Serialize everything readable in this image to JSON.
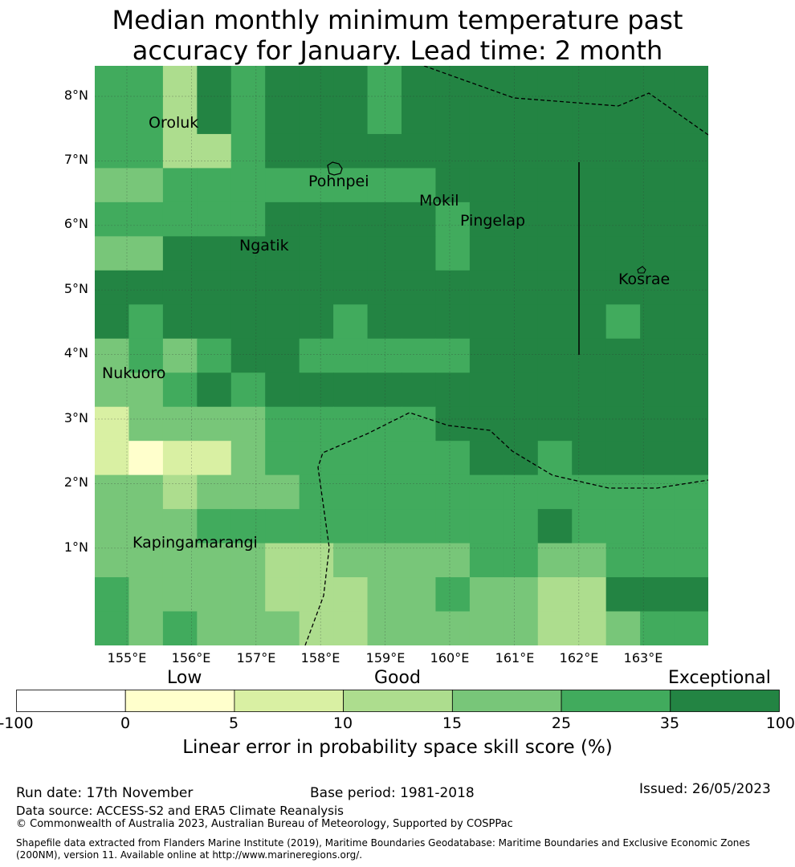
{
  "title_line1": "Median monthly minimum temperature past",
  "title_line2": "accuracy for January. Lead time: 2 month",
  "lat_labels": [
    "8°N",
    "7°N",
    "6°N",
    "5°N",
    "4°N",
    "3°N",
    "2°N",
    "1°N"
  ],
  "lon_labels": [
    "155°E",
    "156°E",
    "157°E",
    "158°E",
    "159°E",
    "160°E",
    "161°E",
    "162°E",
    "163°E"
  ],
  "places": [
    "Oroluk",
    "Pohnpei",
    "Mokil",
    "Pingelap",
    "Ngatik",
    "Kosrae",
    "Nukuoro",
    "Kapingamarangi"
  ],
  "colorbar": {
    "categories": [
      "Low",
      "Good",
      "Exceptional"
    ],
    "ticks": [
      "-100",
      "0",
      "5",
      "10",
      "15",
      "25",
      "35",
      "100"
    ],
    "colors": [
      "#ffffff",
      "#ffffcc",
      "#d9f0a3",
      "#addd8e",
      "#78c679",
      "#41ab5d",
      "#238443"
    ],
    "label": "Linear error in probability space skill score (%)"
  },
  "grid_values": [
    [
      5,
      5,
      3,
      6,
      5,
      6,
      6,
      6,
      5,
      6,
      6,
      6,
      6,
      6,
      6,
      6,
      6,
      6
    ],
    [
      5,
      5,
      3,
      6,
      5,
      6,
      6,
      6,
      5,
      6,
      6,
      6,
      6,
      6,
      6,
      6,
      6,
      6
    ],
    [
      5,
      5,
      3,
      3,
      5,
      6,
      6,
      6,
      6,
      6,
      6,
      6,
      6,
      6,
      6,
      6,
      6,
      6
    ],
    [
      4,
      4,
      5,
      5,
      5,
      5,
      5,
      5,
      5,
      5,
      6,
      6,
      6,
      6,
      6,
      6,
      6,
      6
    ],
    [
      5,
      5,
      5,
      5,
      5,
      6,
      6,
      6,
      6,
      6,
      5,
      6,
      6,
      6,
      6,
      6,
      6,
      6
    ],
    [
      4,
      4,
      6,
      6,
      6,
      6,
      6,
      6,
      6,
      6,
      5,
      6,
      6,
      6,
      6,
      6,
      6,
      6
    ],
    [
      6,
      6,
      6,
      6,
      6,
      6,
      6,
      6,
      6,
      6,
      6,
      6,
      6,
      6,
      6,
      6,
      6,
      6
    ],
    [
      6,
      5,
      6,
      6,
      6,
      6,
      6,
      5,
      6,
      6,
      6,
      6,
      6,
      6,
      6,
      5,
      6,
      6
    ],
    [
      4,
      5,
      4,
      5,
      6,
      6,
      5,
      5,
      5,
      5,
      5,
      6,
      6,
      6,
      6,
      6,
      6,
      6
    ],
    [
      4,
      4,
      5,
      6,
      5,
      6,
      6,
      6,
      6,
      6,
      6,
      6,
      6,
      6,
      6,
      6,
      6,
      6
    ],
    [
      2,
      4,
      4,
      4,
      4,
      5,
      5,
      5,
      5,
      5,
      6,
      6,
      6,
      6,
      6,
      6,
      6,
      6
    ],
    [
      2,
      1,
      2,
      2,
      4,
      5,
      5,
      5,
      5,
      5,
      5,
      6,
      6,
      5,
      6,
      6,
      6,
      6
    ],
    [
      4,
      4,
      3,
      4,
      4,
      4,
      5,
      5,
      5,
      5,
      5,
      5,
      5,
      5,
      5,
      5,
      5,
      5
    ],
    [
      4,
      4,
      4,
      5,
      5,
      5,
      5,
      5,
      5,
      5,
      5,
      5,
      5,
      6,
      5,
      5,
      5,
      5
    ],
    [
      4,
      4,
      4,
      4,
      4,
      3,
      3,
      4,
      4,
      4,
      4,
      5,
      5,
      4,
      4,
      5,
      5,
      5
    ],
    [
      5,
      4,
      4,
      4,
      4,
      3,
      3,
      3,
      4,
      4,
      5,
      4,
      4,
      3,
      3,
      6,
      6,
      6
    ],
    [
      5,
      4,
      5,
      4,
      4,
      4,
      3,
      3,
      4,
      4,
      4,
      4,
      4,
      3,
      3,
      4,
      5,
      5
    ]
  ],
  "footer": {
    "run_date": "Run date: 17th November",
    "base_period": "Base period: 1981-2018",
    "issued": "Issued: 26/05/2023",
    "data_source": "Data source: ACCESS-S2 and ERA5 Climate Reanalysis",
    "copyright": "© Commonwealth of Australia 2023, Australian Bureau of Meteorology, Supported by COSPPac",
    "shapefile1": "Shapefile data extracted from Flanders Marine Institute (2019), Maritime Boundaries Geodatabase: Maritime Boundaries and Exclusive Economic Zones",
    "shapefile2": "(200NM), version 11. Available online at http://www.marineregions.org/."
  }
}
